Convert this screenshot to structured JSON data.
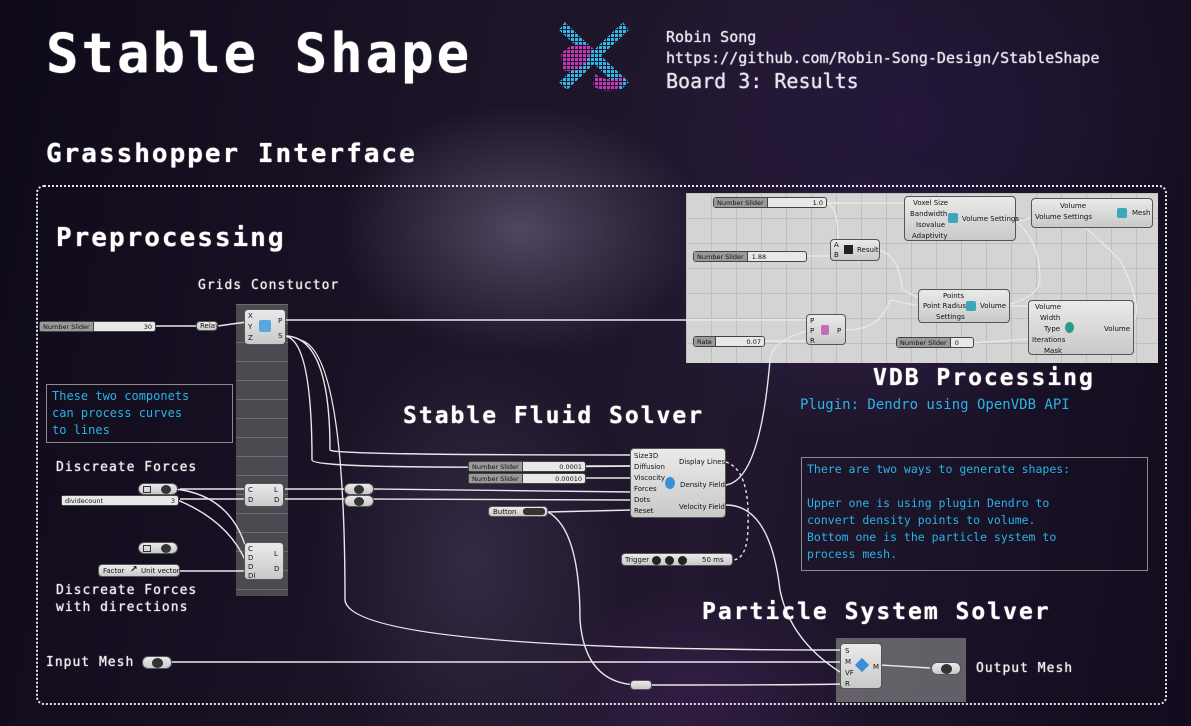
{
  "header": {
    "title": "Stable Shape",
    "author": "Robin Song",
    "url": "https://github.com/Robin-Song-Design/StableShape",
    "board": "Board 3: Results"
  },
  "sections": {
    "interface": "Grasshopper Interface",
    "preprocessing": "Preprocessing",
    "grids": "Grids Constuctor",
    "vdb": "VDB Processing",
    "vdb_plugin": "Plugin: Dendro using OpenVDB API",
    "fluid": "Stable Fluid Solver",
    "particle": "Particle System Solver"
  },
  "labels": {
    "discrete_forces": "Discreate Forces",
    "discrete_dir_1": "Discreate Forces",
    "discrete_dir_2": "with directions",
    "input_mesh": "Input Mesh",
    "output_mesh": "Output Mesh"
  },
  "notes": {
    "curves": "These two componets\ncan process curves\nto lines",
    "ways": "There are two ways to generate shapes:\n\nUpper one is using plugin Dendro to\nconvert density points to volume.\nBottom one is the particle system to\nprocess mesh."
  },
  "components": {
    "slider_main": {
      "label": "Number Slider",
      "value": "30"
    },
    "relay": "Relay",
    "grid_in": [
      "X",
      "Y",
      "Z"
    ],
    "grid_out": [
      "P",
      "S"
    ],
    "slider_voxel": {
      "label": "Number Slider",
      "value": "1.0"
    },
    "slider_188": {
      "label": "Number Slider",
      "value": "1.88"
    },
    "slider_rate": {
      "label": "Rate",
      "value": "0.07"
    },
    "slider_iter": {
      "label": "Number Slider",
      "value": "0"
    },
    "volume_settings_in": [
      "Voxel Size",
      "Bandwidth",
      "Isovalue",
      "Adaptivity"
    ],
    "volume_settings_name": "Volume Settings",
    "result_in": [
      "A",
      "B"
    ],
    "result_name": "Result",
    "points_in": [
      "Points",
      "Point Radius",
      "Settings"
    ],
    "points_name": "Volume",
    "mesh_in": [
      "Volume",
      "Volume Settings"
    ],
    "mesh_name": "Mesh",
    "smooth_in": [
      "Volume",
      "Width",
      "Type",
      "Iterations",
      "Mask"
    ],
    "smooth_name": "Volume",
    "prp_in": [
      "P",
      "P",
      "R"
    ],
    "prp_out": "P",
    "fluid_in": [
      "Size3D",
      "Diffusion",
      "Viscocity",
      "Forces",
      "Dots",
      "Reset"
    ],
    "fluid_out": [
      "Display Lines",
      "Density Field",
      "Velocity Field"
    ],
    "slider_diff": {
      "label": "Number Slider",
      "value": "0.0001"
    },
    "slider_visc": {
      "label": "Number Slider",
      "value": "0.00010"
    },
    "button": "Button",
    "trigger": {
      "label": "Trigger",
      "value": "50 ms"
    },
    "dividecount": {
      "label": "dividecount",
      "value": "3"
    },
    "factor": "Factor",
    "unit_vector": "Unit vector",
    "cd_in": [
      "C",
      "D"
    ],
    "cd_out": [
      "L",
      "D"
    ],
    "cddl_in": [
      "C",
      "D",
      "D",
      "Dl"
    ],
    "cddl_out": [
      "L",
      "D"
    ],
    "ps_in": [
      "S",
      "M",
      "VF",
      "R"
    ],
    "ps_out": "M"
  },
  "colors": {
    "accent_cyan": "#2ab3e8",
    "panel_gray": "#d4d4d4",
    "text_white": "#ffffff"
  }
}
